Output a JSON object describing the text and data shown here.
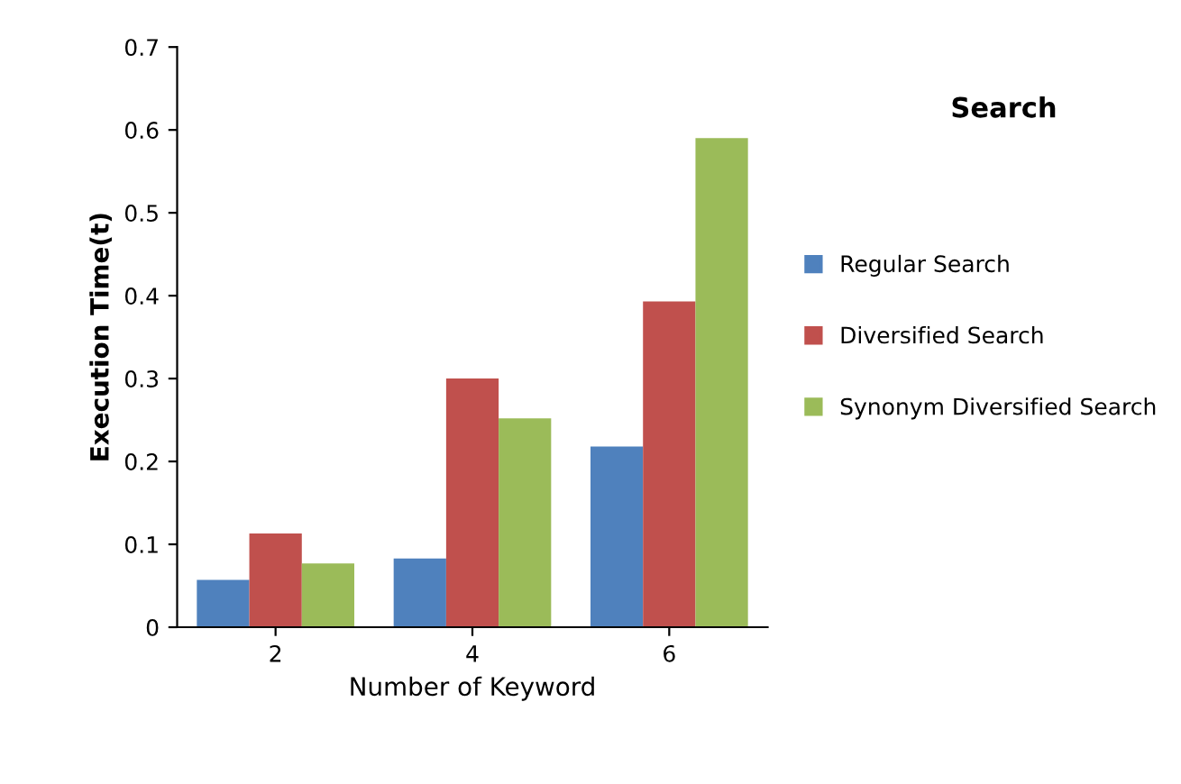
{
  "chart_data": {
    "type": "bar",
    "title": "Search",
    "xlabel": "Number of Keyword",
    "ylabel": "Execution Time(t)",
    "categories": [
      "2",
      "4",
      "6"
    ],
    "series": [
      {
        "name": "Regular Search",
        "color": "#4f81bd",
        "values": [
          0.057,
          0.083,
          0.218
        ]
      },
      {
        "name": "Diversified Search",
        "color": "#c0504d",
        "values": [
          0.113,
          0.3,
          0.393
        ]
      },
      {
        "name": "Synonym Diversified Search",
        "color": "#9bbb59",
        "values": [
          0.077,
          0.252,
          0.59
        ]
      }
    ],
    "ylim": [
      0,
      0.7
    ],
    "yticks": [
      0,
      0.1,
      0.2,
      0.3,
      0.4,
      0.5,
      0.6,
      0.7
    ],
    "grid": false,
    "legend": "right"
  }
}
